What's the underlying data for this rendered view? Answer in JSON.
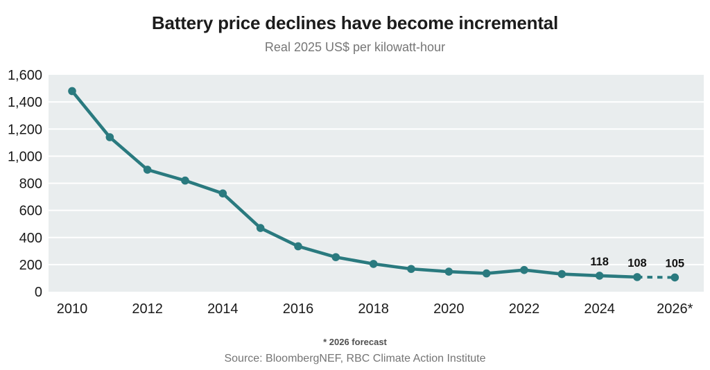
{
  "page": {
    "title": "Battery price declines have become incremental",
    "subtitle": "Real 2025 US$ per kilowatt-hour"
  },
  "footer": {
    "footnote": "* 2026 forecast",
    "source": "Source: BloombergNEF, RBC Climate Action Institute"
  },
  "chart_data": {
    "type": "line",
    "title": "Battery price declines have become incremental",
    "subtitle": "Real 2025 US$ per kilowatt-hour",
    "ylabel": "Real 2025 US$ per kilowatt-hour",
    "xlabel": "",
    "x": [
      2010,
      2011,
      2012,
      2013,
      2014,
      2015,
      2016,
      2017,
      2018,
      2019,
      2020,
      2021,
      2022,
      2023,
      2024,
      2025,
      2026
    ],
    "values": [
      1480,
      1140,
      900,
      820,
      725,
      470,
      335,
      255,
      205,
      168,
      148,
      135,
      160,
      130,
      118,
      108,
      105
    ],
    "ylim": [
      0,
      1600
    ],
    "ytick_values": [
      0,
      200,
      400,
      600,
      800,
      1000,
      1200,
      1400,
      1600
    ],
    "ytick_labels": [
      "0",
      "200",
      "400",
      "600",
      "800",
      "1,000",
      "1,200",
      "1,400",
      "1,600"
    ],
    "xtick_values": [
      2010,
      2012,
      2014,
      2016,
      2018,
      2020,
      2022,
      2024,
      2026
    ],
    "xtick_labels": [
      "2010",
      "2012",
      "2014",
      "2016",
      "2018",
      "2020",
      "2022",
      "2024",
      "2026*"
    ],
    "dashed_from_x": 2025,
    "annotations": [
      {
        "x": 2024,
        "label": "118"
      },
      {
        "x": 2025,
        "label": "108"
      },
      {
        "x": 2026,
        "label": "105"
      }
    ],
    "legend": "none",
    "grid": "horizontal",
    "line_color": "#2a7a7f",
    "plot_bg": "#e9edee",
    "grid_color": "#ffffff",
    "tick_label_color": "#1a1a1a",
    "annotation_color": "#111111"
  }
}
